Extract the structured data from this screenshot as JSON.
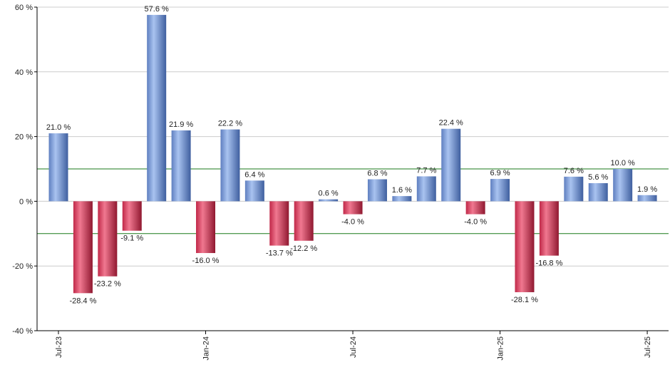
{
  "chart_data": {
    "type": "bar",
    "title": "",
    "xlabel": "",
    "ylabel": "",
    "ylim": [
      -40,
      60
    ],
    "yticks": [
      -40,
      -20,
      0,
      20,
      40,
      60
    ],
    "ytick_labels": [
      "-40 %",
      "-20 %",
      "0 %",
      "20 %",
      "40 %",
      "60 %"
    ],
    "x_tick_labels": [
      {
        "label": "Jul-23",
        "index": 0
      },
      {
        "label": "Jan-24",
        "index": 6
      },
      {
        "label": "Jul-24",
        "index": 12
      },
      {
        "label": "Jan-25",
        "index": 18
      },
      {
        "label": "Jul-25",
        "index": 24
      }
    ],
    "reference_lines": [
      10,
      -10
    ],
    "values": [
      21.0,
      -28.4,
      -23.2,
      -9.1,
      57.6,
      21.9,
      -16.0,
      22.2,
      6.4,
      -13.7,
      -12.2,
      0.6,
      -4.0,
      6.8,
      1.6,
      7.7,
      22.4,
      -4.0,
      6.9,
      -28.1,
      -16.8,
      7.6,
      5.6,
      10.0,
      1.9
    ],
    "data_labels": [
      "21.0 %",
      "-28.4 %",
      "-23.2 %",
      "-9.1 %",
      "57.6 %",
      "21.9 %",
      "-16.0 %",
      "22.2 %",
      "6.4 %",
      "-13.7 %",
      "-12.2 %",
      "0.6 %",
      "-4.0 %",
      "6.8 %",
      "1.6 %",
      "7.7 %",
      "22.4 %",
      "-4.0 %",
      "6.9 %",
      "-28.1 %",
      "-16.8 %",
      "7.6 %",
      "5.6 %",
      "10.0 %",
      "1.9 %"
    ],
    "colors": {
      "positive": "#7f9fd8",
      "negative": "#d8405a",
      "reference": "#1a7a1a",
      "grid": "#cccccc",
      "axis": "#000000"
    }
  }
}
